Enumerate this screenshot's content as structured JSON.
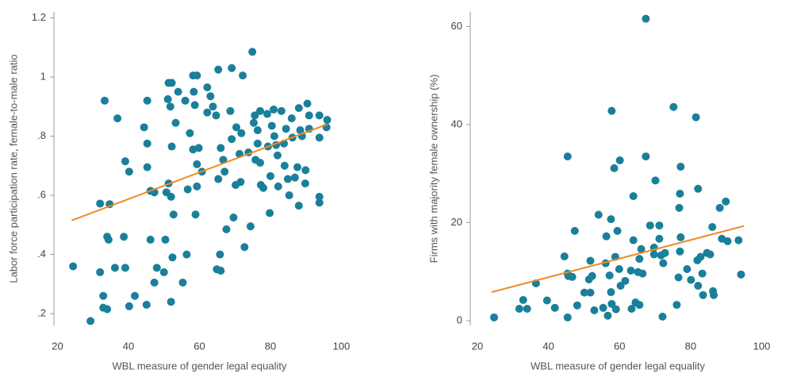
{
  "chart_data": [
    {
      "type": "scatter",
      "x_label": "WBL measure of gender legal equality",
      "y_label": "Labor force participation rate, female-to-male ratio",
      "xlim": [
        19,
        101
      ],
      "ylim": [
        0.16,
        1.22
      ],
      "xticks": [
        20,
        40,
        60,
        80,
        100
      ],
      "yticks": [
        {
          "value": 0.2,
          "label": ".2"
        },
        {
          "value": 0.4,
          "label": ".4"
        },
        {
          "value": 0.6,
          "label": ".6"
        },
        {
          "value": 0.8,
          "label": ".8"
        },
        1,
        1.2
      ],
      "color": "#1a7f9a",
      "trend_color": "#f08a24",
      "trend": {
        "x": [
          24,
          96
        ],
        "y": [
          0.515,
          0.84
        ]
      },
      "x": [
        24.4,
        29.3,
        32,
        33.3,
        34.7,
        36.9,
        34,
        34.4,
        32,
        32.9,
        32.9,
        34,
        36.2,
        38.7,
        39.1,
        40.2,
        39.1,
        40.2,
        41.8,
        44.4,
        45.3,
        45.3,
        45.3,
        46.2,
        47.3,
        46.2,
        45.1,
        47.3,
        48,
        50,
        50.4,
        50.7,
        51.3,
        51.3,
        52.2,
        51.1,
        51.8,
        52.2,
        52,
        52.7,
        53.3,
        54,
        52,
        52.4,
        55.3,
        56,
        56.4,
        56.7,
        57.3,
        58.2,
        58.2,
        59.3,
        58.4,
        58.7,
        59.3,
        58.9,
        59.8,
        59.3,
        60.7,
        62.2,
        63.1,
        63.8,
        62.2,
        64.7,
        65.3,
        66,
        66.7,
        67.1,
        65.3,
        65.8,
        64.9,
        66,
        67.6,
        69.1,
        68.7,
        69.1,
        69.6,
        70.2,
        70.4,
        71.8,
        71.6,
        71.3,
        72.2,
        72.7,
        73.8,
        74.9,
        75.3,
        75.6,
        74.4,
        75.8,
        76.4,
        76.4,
        77.1,
        77.3,
        77.1,
        78,
        79.1,
        79.3,
        79.8,
        80,
        80.4,
        80.9,
        81.1,
        81.6,
        82,
        82.2,
        83.1,
        83.8,
        84,
        84.4,
        84.9,
        85.3,
        86.2,
        86,
        86.9,
        87.6,
        88,
        88.4,
        88.9,
        88,
        89.8,
        90.4,
        89.9,
        90.9,
        93.8,
        93.8,
        93.8,
        95.8,
        96,
        93.8,
        90.9
      ],
      "values": [
        0.36,
        0.175,
        0.572,
        0.92,
        0.57,
        0.86,
        0.46,
        0.45,
        0.34,
        0.26,
        0.22,
        0.215,
        0.355,
        0.46,
        0.715,
        0.68,
        0.355,
        0.225,
        0.26,
        0.83,
        0.92,
        0.775,
        0.695,
        0.615,
        0.61,
        0.45,
        0.23,
        0.305,
        0.355,
        0.34,
        0.45,
        0.61,
        0.64,
        0.98,
        0.98,
        0.925,
        0.9,
        0.765,
        0.595,
        0.535,
        0.845,
        0.95,
        0.24,
        0.39,
        0.305,
        0.92,
        0.4,
        0.62,
        0.81,
        0.755,
        1.005,
        1.005,
        0.95,
        0.905,
        0.705,
        0.535,
        0.76,
        0.63,
        0.68,
        0.965,
        0.935,
        0.9,
        0.88,
        0.87,
        1.025,
        0.76,
        0.72,
        0.68,
        0.655,
        0.4,
        0.35,
        0.345,
        0.485,
        1.03,
        0.885,
        0.79,
        0.525,
        0.635,
        0.83,
        0.81,
        0.645,
        0.74,
        1.005,
        0.425,
        0.745,
        1.085,
        0.845,
        0.87,
        0.495,
        0.72,
        0.775,
        0.82,
        0.885,
        0.635,
        0.71,
        0.625,
        0.875,
        0.765,
        0.54,
        0.665,
        0.835,
        0.89,
        0.8,
        0.77,
        0.735,
        0.63,
        0.885,
        0.775,
        0.7,
        0.825,
        0.655,
        0.6,
        0.795,
        0.86,
        0.66,
        0.695,
        0.565,
        0.82,
        0.8,
        0.895,
        0.64,
        0.91,
        0.685,
        0.825,
        0.575,
        0.595,
        0.87,
        0.83,
        0.855,
        0.795,
        0.87
      ]
    },
    {
      "type": "scatter",
      "x_label": "WBL measure of gender legal equality",
      "y_label": "Firms with majority female ownership (%)",
      "xlim": [
        18,
        101
      ],
      "ylim": [
        -1,
        63
      ],
      "xticks": [
        20,
        40,
        60,
        80,
        100
      ],
      "yticks": [
        0,
        20,
        40,
        60
      ],
      "color": "#1a7f9a",
      "trend_color": "#f08a24",
      "trend": {
        "x": [
          24,
          95
        ],
        "y": [
          5.8,
          19.3
        ]
      },
      "x": [
        24.7,
        31.8,
        32.9,
        34,
        36.5,
        39.6,
        41.8,
        44.5,
        45.4,
        45.4,
        45.6,
        45.4,
        46.7,
        47.4,
        48.1,
        50.1,
        51.4,
        51.8,
        52.3,
        51.8,
        52.9,
        54.1,
        55.4,
        56.1,
        56.3,
        56.7,
        57.2,
        57.6,
        57.6,
        57.8,
        57.8,
        58.5,
        58.8,
        59,
        59.4,
        59.9,
        60.1,
        60.3,
        61.6,
        63.2,
        63.9,
        63.9,
        63.4,
        64.5,
        65.2,
        65.6,
        66.1,
        65.6,
        66.5,
        67.4,
        67.4,
        68.6,
        69.7,
        69.7,
        70.1,
        71.2,
        71.2,
        71.7,
        72.1,
        72.3,
        72.8,
        75.2,
        76.1,
        76.6,
        76.8,
        77,
        77.2,
        77,
        77.2,
        79,
        80.1,
        81.5,
        82.1,
        81.9,
        82.1,
        82.8,
        83.3,
        83.5,
        84.6,
        85.5,
        86.1,
        86.3,
        86.5,
        88.2,
        88.8,
        89.9,
        90.4,
        93.5,
        94.2
      ],
      "values": [
        0.65,
        2.4,
        4.2,
        2.4,
        7.6,
        4.1,
        2.6,
        13.1,
        33.5,
        9.6,
        9.1,
        0.65,
        8.9,
        18.3,
        3.1,
        5.7,
        8.4,
        12.2,
        9.1,
        5.7,
        2.1,
        21.6,
        2.6,
        11.7,
        17.2,
        1,
        9.2,
        5.8,
        20.7,
        3.4,
        42.8,
        31.1,
        13,
        2.3,
        18.3,
        10.5,
        32.7,
        7.1,
        8.1,
        10.2,
        25.4,
        16.4,
        2.4,
        3.7,
        9.9,
        3.2,
        14.6,
        12.6,
        9.6,
        33.5,
        61.6,
        19.4,
        13.5,
        14.9,
        28.6,
        16.7,
        19.4,
        13.3,
        0.8,
        11.7,
        13.8,
        43.6,
        3.2,
        8.8,
        23,
        25.9,
        31.4,
        14.1,
        17,
        10.5,
        8.3,
        41.5,
        7.1,
        12.3,
        26.9,
        13,
        9.6,
        5.2,
        13.8,
        13.5,
        19.1,
        6,
        5.2,
        23,
        16.7,
        24.3,
        16.2,
        16.4,
        9.4
      ]
    }
  ]
}
